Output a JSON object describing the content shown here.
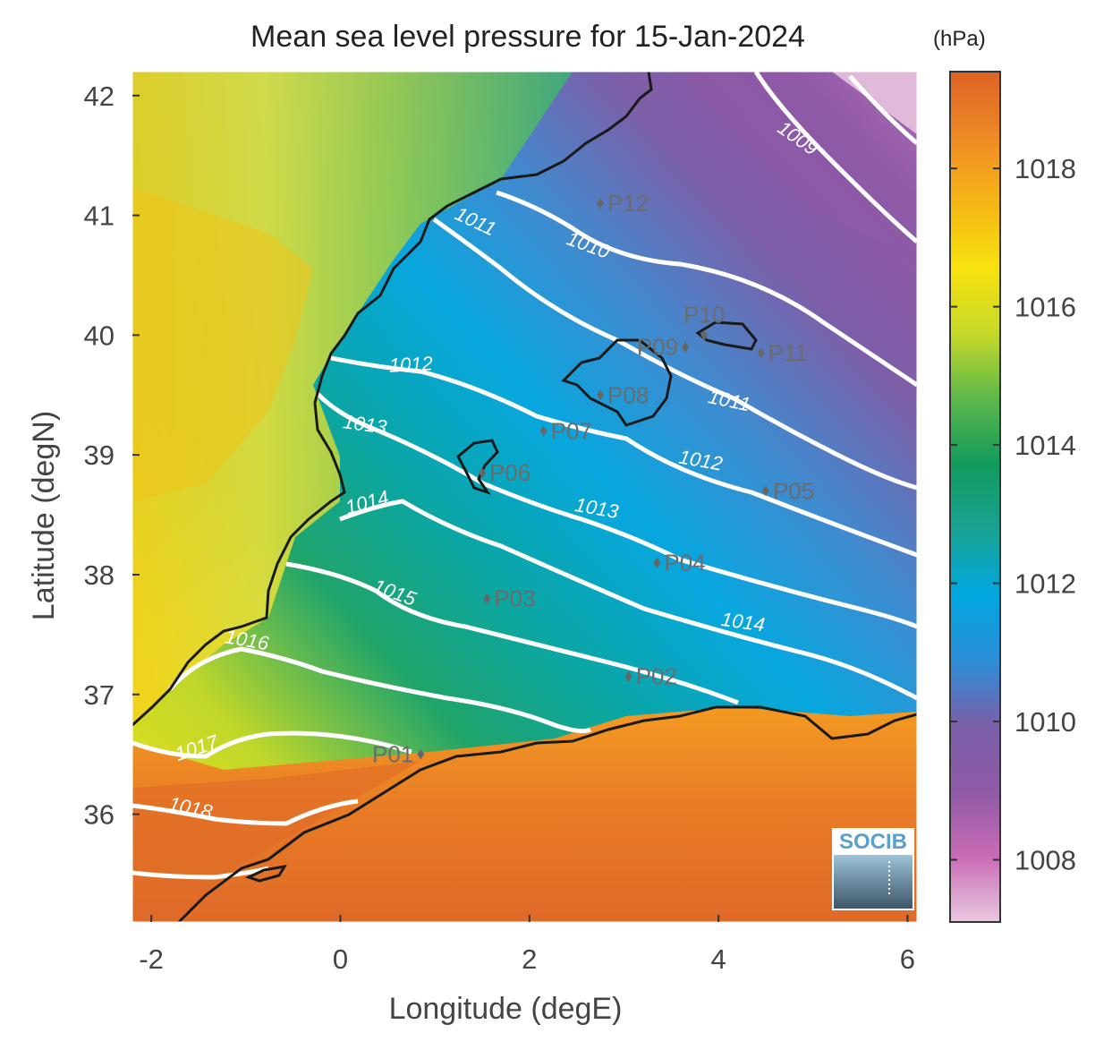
{
  "title": "Mean sea level pressure for 15-Jan-2024",
  "colorbar": {
    "units": "(hPa)",
    "ticks": [
      1008,
      1010,
      1012,
      1014,
      1016,
      1018
    ],
    "range": [
      1007.1,
      1019.4
    ],
    "colormap": [
      "#e8c9e0",
      "#c96bb5",
      "#8e5aa6",
      "#7a5fa8",
      "#2c8ed8",
      "#00a7e0",
      "#1aa394",
      "#129a5c",
      "#5cb84a",
      "#c7d92a",
      "#f7e20e",
      "#f6b615",
      "#ee8a25",
      "#dd6325"
    ]
  },
  "map": {
    "xlabel": "Longitude (degE)",
    "ylabel": "Latitude (degN)",
    "xlim": [
      -2.2,
      6.1
    ],
    "ylim": [
      35.1,
      42.2
    ],
    "xticks": [
      -2,
      0,
      2,
      4,
      6
    ],
    "yticks": [
      36,
      37,
      38,
      39,
      40,
      41,
      42
    ],
    "isobar_labels": [
      {
        "text": "1009",
        "lon": 4.8,
        "lat": 41.6,
        "rot": 35
      },
      {
        "text": "1010",
        "lon": 2.6,
        "lat": 40.7,
        "rot": 20
      },
      {
        "text": "1011",
        "lon": 1.4,
        "lat": 40.9,
        "rot": 25
      },
      {
        "text": "1011",
        "lon": 4.1,
        "lat": 39.4,
        "rot": 12
      },
      {
        "text": "1012",
        "lon": 0.75,
        "lat": 39.7,
        "rot": -3
      },
      {
        "text": "1012",
        "lon": 3.8,
        "lat": 38.9,
        "rot": 10
      },
      {
        "text": "1013",
        "lon": 0.25,
        "lat": 39.2,
        "rot": 8
      },
      {
        "text": "1013",
        "lon": 2.7,
        "lat": 38.5,
        "rot": 10
      },
      {
        "text": "1014",
        "lon": 0.3,
        "lat": 38.55,
        "rot": -15
      },
      {
        "text": "1014",
        "lon": 4.25,
        "lat": 37.55,
        "rot": 8
      },
      {
        "text": "1015",
        "lon": 0.55,
        "lat": 37.8,
        "rot": 20
      },
      {
        "text": "1016",
        "lon": -1.0,
        "lat": 37.4,
        "rot": 10
      },
      {
        "text": "1017",
        "lon": -1.5,
        "lat": 36.5,
        "rot": -18
      },
      {
        "text": "1018",
        "lon": -1.6,
        "lat": 36.0,
        "rot": 12
      }
    ],
    "points": [
      {
        "name": "P01",
        "lon": 0.85,
        "lat": 36.5,
        "label_side": "left"
      },
      {
        "name": "P02",
        "lon": 3.05,
        "lat": 37.15,
        "label_side": "right"
      },
      {
        "name": "P03",
        "lon": 1.55,
        "lat": 37.8,
        "label_side": "right"
      },
      {
        "name": "P04",
        "lon": 3.35,
        "lat": 38.1,
        "label_side": "right"
      },
      {
        "name": "P05",
        "lon": 4.5,
        "lat": 38.7,
        "label_side": "right"
      },
      {
        "name": "P06",
        "lon": 1.5,
        "lat": 38.85,
        "label_side": "right"
      },
      {
        "name": "P07",
        "lon": 2.15,
        "lat": 39.2,
        "label_side": "right"
      },
      {
        "name": "P08",
        "lon": 2.75,
        "lat": 39.5,
        "label_side": "right"
      },
      {
        "name": "P09",
        "lon": 3.65,
        "lat": 39.9,
        "label_side": "left"
      },
      {
        "name": "P10",
        "lon": 3.85,
        "lat": 40.0,
        "label_side": "top"
      },
      {
        "name": "P11",
        "lon": 4.45,
        "lat": 39.85,
        "label_side": "right"
      },
      {
        "name": "P12",
        "lon": 2.75,
        "lat": 41.1,
        "label_side": "right"
      }
    ]
  },
  "logo": {
    "text": "SOCIB"
  }
}
